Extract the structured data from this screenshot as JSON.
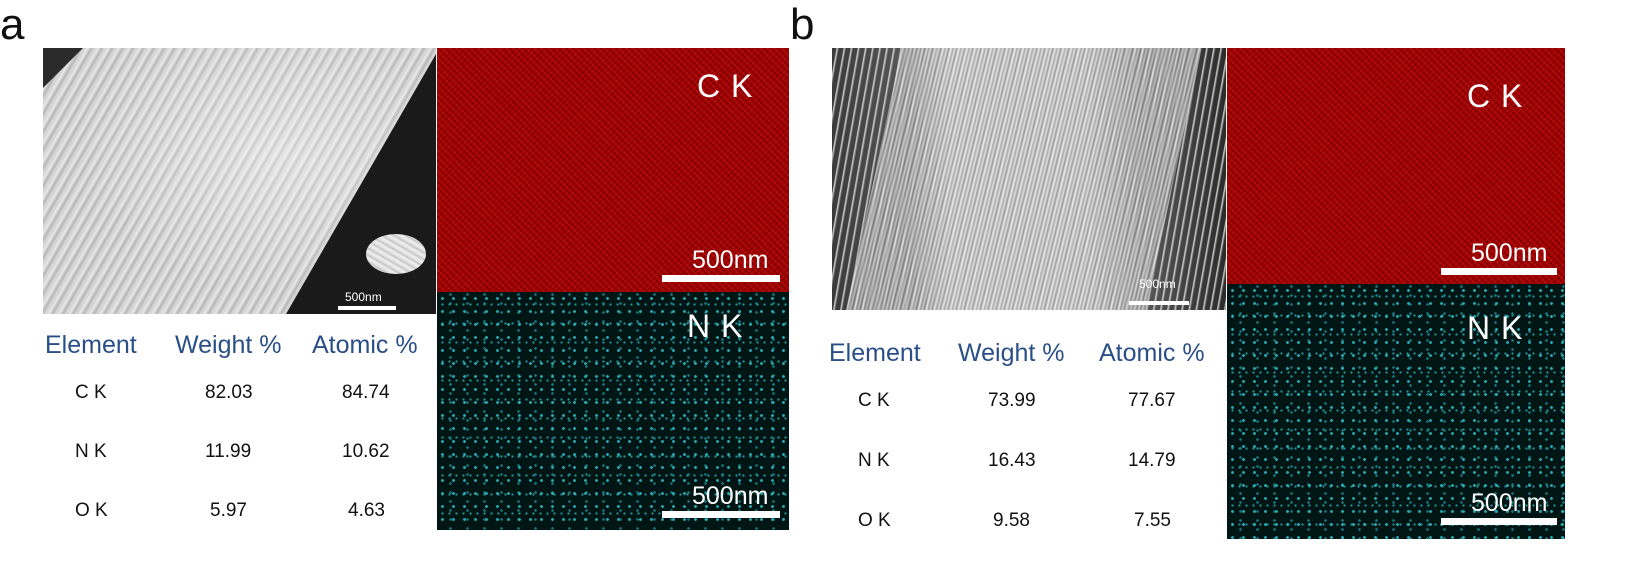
{
  "panel_a": {
    "letter": "a",
    "sem_scale": "500nm",
    "map_ck": {
      "label": "C K",
      "scale": "500nm"
    },
    "map_nk": {
      "label": "N K",
      "scale": "500nm"
    },
    "table": {
      "headers": [
        "Element",
        "Weight %",
        "Atomic %"
      ],
      "rows": [
        [
          "C K",
          "82.03",
          "84.74"
        ],
        [
          "N K",
          "11.99",
          "10.62"
        ],
        [
          "O K",
          "5.97",
          "4.63"
        ]
      ]
    }
  },
  "panel_b": {
    "letter": "b",
    "sem_scale": "500nm",
    "map_ck": {
      "label": "C K",
      "scale": "500nm"
    },
    "map_nk": {
      "label": "N K",
      "scale": "500nm"
    },
    "table": {
      "headers": [
        "Element",
        "Weight %",
        "Atomic %"
      ],
      "rows": [
        [
          "C K",
          "73.99",
          "77.67"
        ],
        [
          "N K",
          "16.43",
          "14.79"
        ],
        [
          "O K",
          "9.58",
          "7.55"
        ]
      ]
    }
  },
  "colors": {
    "header_text": "#2a4f86",
    "ck_map": "#a30000",
    "nk_map": "#001614"
  }
}
